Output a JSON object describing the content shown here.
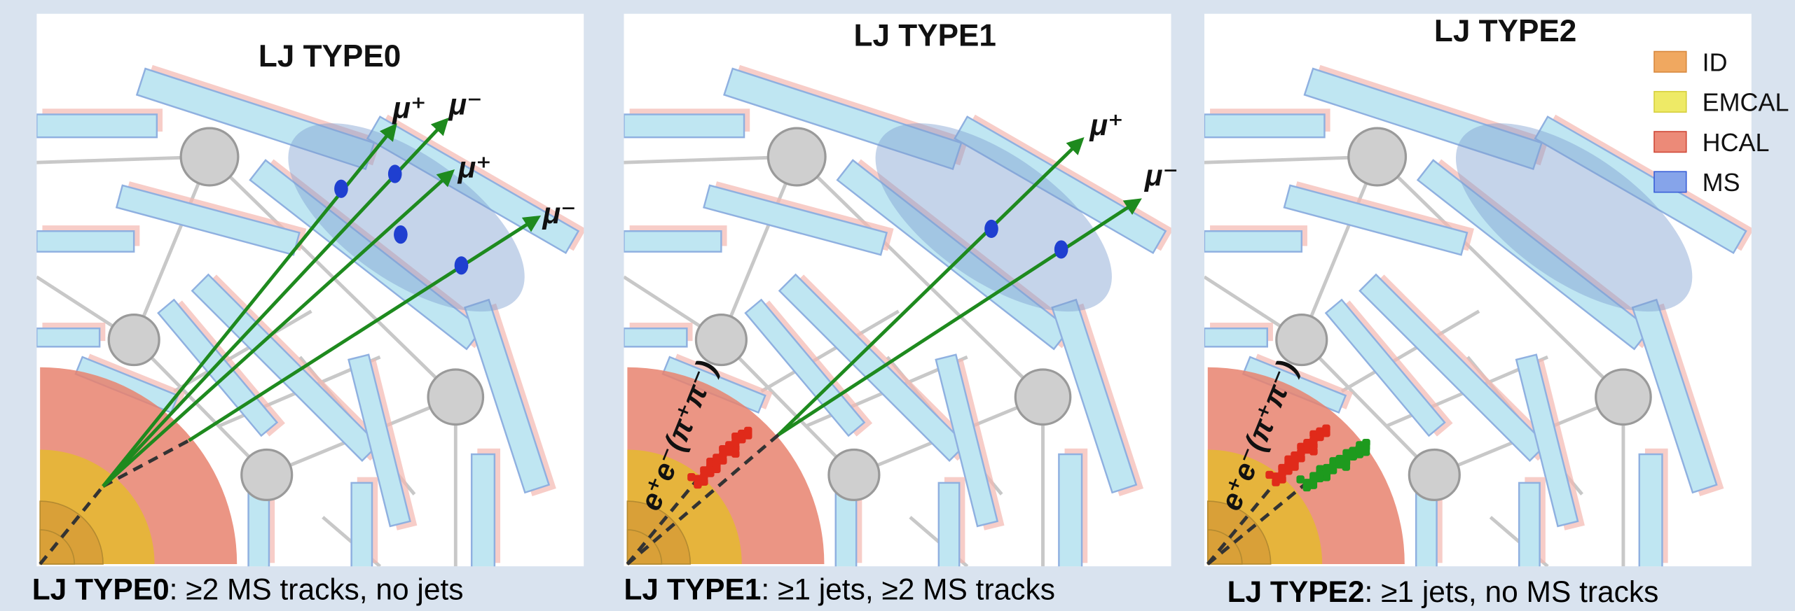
{
  "panels": [
    {
      "title": "LJ TYPE0",
      "caption": {
        "name": "LJ TYPE0",
        "text": ": ≥2 MS tracks, no jets"
      },
      "tracks": [
        "μ⁺",
        "μ⁻",
        "μ⁺",
        "μ⁻"
      ]
    },
    {
      "title": "LJ TYPE1",
      "caption": {
        "name": "LJ TYPE1",
        "text": ": ≥1 jets, ≥2  MS tracks"
      },
      "tracks": [
        "μ⁺",
        "μ⁻"
      ],
      "jet": "e⁺e⁻(π⁺π⁻)"
    },
    {
      "title": "LJ TYPE2",
      "caption": {
        "name": "LJ TYPE2",
        "text": ": ≥1 jets, no MS tracks"
      },
      "jet": "e⁺e⁻(π⁺π⁻)"
    }
  ],
  "legend": [
    "ID",
    "EMCAL",
    "HCAL",
    "MS"
  ]
}
